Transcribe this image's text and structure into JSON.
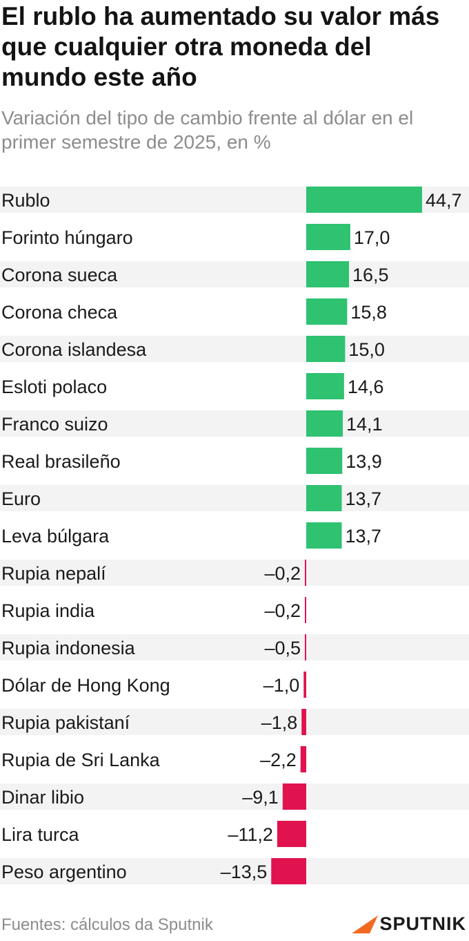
{
  "title": "El rublo ha aumentado su valor más que cualquier otra moneda del mundo este año",
  "subtitle": "Variación del tipo de cambio frente al dólar en el primer semestre de 2025, en %",
  "source": "Fuentes: cálculos da Sputnik",
  "logo_text": "SPUTNIK",
  "colors": {
    "positive": "#2ec271",
    "negative": "#e0134f",
    "logo_accent": "#f26a21"
  },
  "chart_data": {
    "type": "bar",
    "orientation": "horizontal",
    "title": "El rublo ha aumentado su valor más que cualquier otra moneda del mundo este año",
    "subtitle": "Variación del tipo de cambio frente al dólar en el primer semestre de 2025, en %",
    "categories": [
      "Rublo",
      "Forinto húngaro",
      "Corona sueca",
      "Corona checa",
      "Corona islandesa",
      "Esloti polaco",
      "Franco suizo",
      "Real brasileño",
      "Euro",
      "Leva búlgara",
      "Rupia nepalí",
      "Rupia india",
      "Rupia indonesia",
      "Dólar de Hong Kong",
      "Rupia pakistaní",
      "Rupia de Sri Lanka",
      "Dinar libio",
      "Lira turca",
      "Peso argentino"
    ],
    "values": [
      44.7,
      17.0,
      16.5,
      15.8,
      15.0,
      14.6,
      14.1,
      13.9,
      13.7,
      13.7,
      -0.2,
      -0.2,
      -0.5,
      -1.0,
      -1.8,
      -2.2,
      -9.1,
      -11.2,
      -13.5
    ],
    "value_labels": [
      "44,7",
      "17,0",
      "16,5",
      "15,8",
      "15,0",
      "14,6",
      "14,1",
      "13,9",
      "13,7",
      "13,7",
      "–0,2",
      "–0,2",
      "–0,5",
      "–1,0",
      "–1,8",
      "–2,2",
      "–9,1",
      "–11,2",
      "–13,5"
    ],
    "xlabel": "",
    "ylabel": "",
    "grid": false,
    "legend": "none"
  }
}
